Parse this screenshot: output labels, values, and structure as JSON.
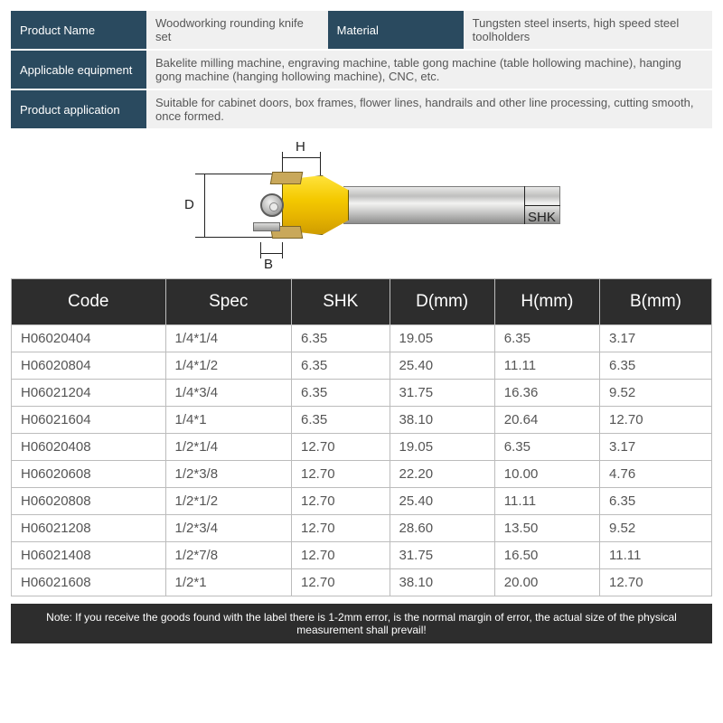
{
  "info_rows": [
    {
      "cells": [
        {
          "type": "label",
          "text": "Product Name"
        },
        {
          "type": "value",
          "text": "Woodworking rounding knife set"
        },
        {
          "type": "label",
          "text": "Material"
        },
        {
          "type": "value",
          "text": "Tungsten steel inserts, high speed steel toolholders"
        }
      ]
    },
    {
      "cells": [
        {
          "type": "label",
          "text": "Applicable equipment"
        },
        {
          "type": "value",
          "colspan": 3,
          "text": "Bakelite milling machine, engraving machine, table gong machine (table hollowing machine), hanging gong machine (hanging hollowing machine), CNC, etc."
        }
      ]
    },
    {
      "cells": [
        {
          "type": "label",
          "text": "Product application"
        },
        {
          "type": "value",
          "colspan": 3,
          "text": "Suitable for cabinet doors, box frames, flower lines, handrails and other line processing, cutting smooth, once formed."
        }
      ]
    }
  ],
  "diagram_labels": {
    "D": "D",
    "H": "H",
    "B": "B",
    "SHK": "SHK"
  },
  "spec_columns": [
    "Code",
    "Spec",
    "SHK",
    "D(mm)",
    "H(mm)",
    "B(mm)"
  ],
  "spec_col_widths": [
    "22%",
    "18%",
    "14%",
    "15%",
    "15%",
    "16%"
  ],
  "spec_rows": [
    [
      "H06020404",
      "1/4*1/4",
      "6.35",
      "19.05",
      "6.35",
      "3.17"
    ],
    [
      "H06020804",
      "1/4*1/2",
      "6.35",
      "25.40",
      "11.11",
      "6.35"
    ],
    [
      "H06021204",
      "1/4*3/4",
      "6.35",
      "31.75",
      "16.36",
      "9.52"
    ],
    [
      "H06021604",
      "1/4*1",
      "6.35",
      "38.10",
      "20.64",
      "12.70"
    ],
    [
      "H06020408",
      "1/2*1/4",
      "12.70",
      "19.05",
      "6.35",
      "3.17"
    ],
    [
      "H06020608",
      "1/2*3/8",
      "12.70",
      "22.20",
      "10.00",
      "4.76"
    ],
    [
      "H06020808",
      "1/2*1/2",
      "12.70",
      "25.40",
      "11.11",
      "6.35"
    ],
    [
      "H06021208",
      "1/2*3/4",
      "12.70",
      "28.60",
      "13.50",
      "9.52"
    ],
    [
      "H06021408",
      "1/2*7/8",
      "12.70",
      "31.75",
      "16.50",
      "11.11"
    ],
    [
      "H06021608",
      "1/2*1",
      "12.70",
      "38.10",
      "20.00",
      "12.70"
    ]
  ],
  "note": "Note: If you receive the goods found with the label there is 1-2mm error, is the normal margin of error, the actual size of the physical measurement shall prevail!",
  "colors": {
    "header_bg": "#2a4a5f",
    "value_bg": "#f0f0f0",
    "spec_header_bg": "#2d2d2d",
    "border": "#bcbcbc"
  }
}
